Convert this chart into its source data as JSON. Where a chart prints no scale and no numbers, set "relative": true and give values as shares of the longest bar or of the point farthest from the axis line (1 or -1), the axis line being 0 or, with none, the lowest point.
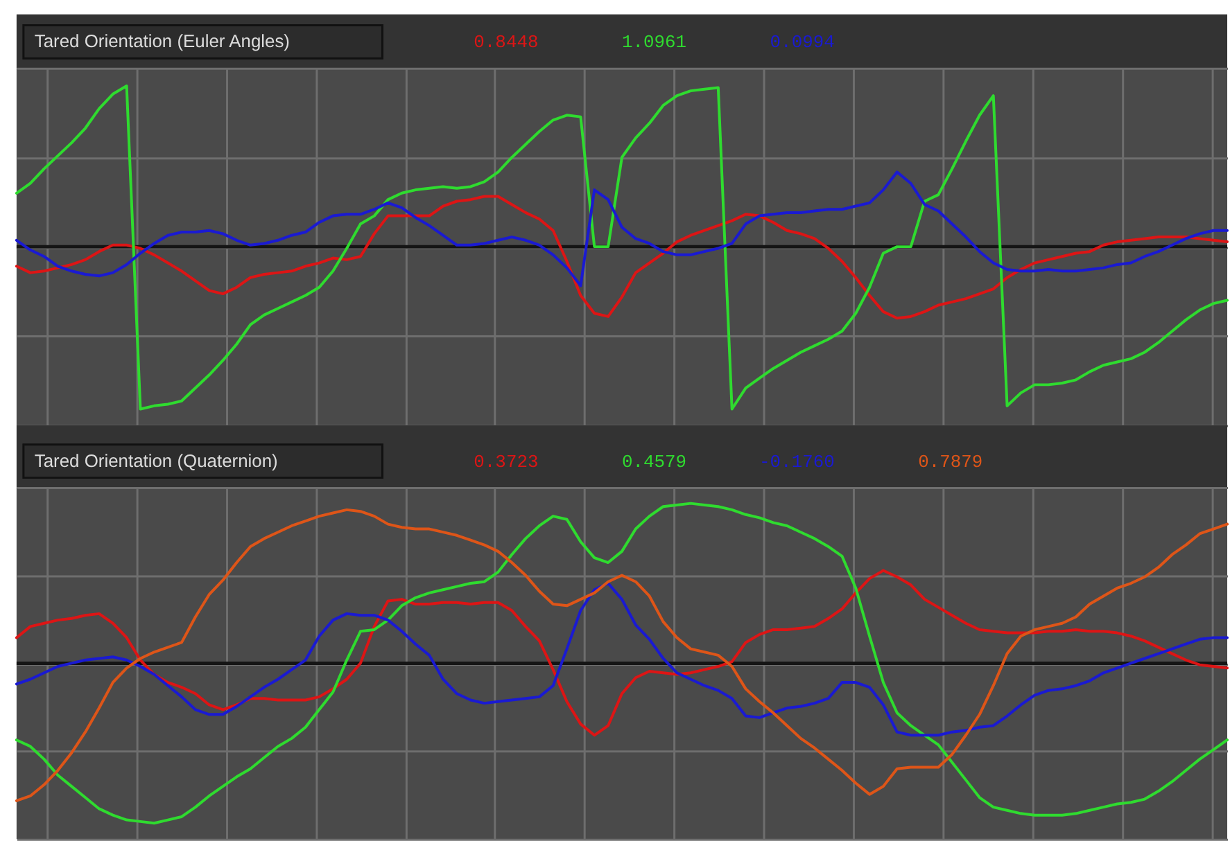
{
  "chart_data": [
    {
      "type": "line",
      "title": "Tared Orientation (Euler Angles)",
      "relative": true,
      "grid": true,
      "categories": [
        null,
        null,
        null,
        null,
        null,
        null,
        null,
        null,
        null,
        null,
        null,
        null,
        null,
        null,
        null,
        null,
        null,
        null,
        null,
        null,
        null,
        null,
        null,
        null,
        null,
        null,
        null,
        null,
        null,
        null,
        null,
        null,
        null,
        null,
        null,
        null,
        null,
        null,
        null,
        null,
        null,
        null,
        null,
        null,
        null,
        null,
        null,
        null,
        null,
        null,
        null,
        null,
        null,
        null,
        null,
        null,
        null,
        null,
        null,
        null,
        null,
        null,
        null,
        null,
        null,
        null,
        null,
        null,
        null,
        null,
        null,
        null,
        null,
        null,
        null,
        null,
        null,
        null,
        null,
        null,
        null,
        null,
        null,
        null,
        null,
        null,
        null,
        null,
        null
      ],
      "series": [
        {
          "name": "0.8448",
          "color": "#dd1515",
          "values": [
            -0.12,
            -0.16,
            -0.15,
            -0.13,
            -0.11,
            -0.08,
            -0.03,
            0.01,
            0.01,
            -0.01,
            -0.05,
            -0.1,
            -0.15,
            -0.21,
            -0.27,
            -0.29,
            -0.25,
            -0.19,
            -0.17,
            -0.16,
            -0.15,
            -0.12,
            -0.1,
            -0.07,
            -0.08,
            -0.06,
            0.08,
            0.19,
            0.19,
            0.19,
            0.19,
            0.25,
            0.28,
            0.29,
            0.31,
            0.31,
            0.26,
            0.21,
            0.17,
            0.1,
            -0.09,
            -0.3,
            -0.41,
            -0.43,
            -0.31,
            -0.16,
            -0.1,
            -0.04,
            0.03,
            0.07,
            0.1,
            0.13,
            0.16,
            0.2,
            0.19,
            0.15,
            0.1,
            0.08,
            0.05,
            -0.01,
            -0.09,
            -0.19,
            -0.3,
            -0.4,
            -0.44,
            -0.43,
            -0.4,
            -0.36,
            -0.34,
            -0.32,
            -0.29,
            -0.26,
            -0.19,
            -0.14,
            -0.1,
            -0.08,
            -0.06,
            -0.04,
            -0.03,
            0.01,
            0.03,
            0.04,
            0.05,
            0.06,
            0.06,
            0.06,
            0.05,
            0.04,
            0.03
          ]
        },
        {
          "name": "1.0961",
          "color": "#2fdb2f",
          "values": [
            0.33,
            0.39,
            0.48,
            0.56,
            0.64,
            0.73,
            0.85,
            0.94,
            0.99,
            -1.0,
            -0.98,
            -0.97,
            -0.95,
            -0.87,
            -0.79,
            -0.7,
            -0.6,
            -0.48,
            -0.42,
            -0.38,
            -0.34,
            -0.3,
            -0.25,
            -0.15,
            -0.01,
            0.14,
            0.19,
            0.29,
            0.33,
            0.35,
            0.36,
            0.37,
            0.36,
            0.37,
            0.4,
            0.46,
            0.55,
            0.63,
            0.71,
            0.78,
            0.81,
            0.8,
            0.0,
            0.0,
            0.55,
            0.67,
            0.76,
            0.87,
            0.93,
            0.96,
            0.97,
            0.98,
            -1.0,
            -0.87,
            -0.81,
            -0.75,
            -0.7,
            -0.65,
            -0.61,
            -0.57,
            -0.52,
            -0.41,
            -0.25,
            -0.04,
            0.0,
            0.0,
            0.28,
            0.32,
            0.48,
            0.65,
            0.81,
            0.93,
            -0.98,
            -0.9,
            -0.85,
            -0.85,
            -0.84,
            -0.82,
            -0.77,
            -0.73,
            -0.71,
            -0.69,
            -0.65,
            -0.59,
            -0.52,
            -0.45,
            -0.39,
            -0.35,
            -0.33
          ]
        },
        {
          "name": "0.0994",
          "color": "#1a1ad2",
          "values": [
            0.04,
            -0.02,
            -0.06,
            -0.12,
            -0.15,
            -0.17,
            -0.18,
            -0.16,
            -0.11,
            -0.04,
            0.02,
            0.07,
            0.09,
            0.09,
            0.1,
            0.08,
            0.04,
            0.01,
            0.02,
            0.04,
            0.07,
            0.09,
            0.15,
            0.19,
            0.2,
            0.2,
            0.23,
            0.27,
            0.24,
            0.18,
            0.13,
            0.07,
            0.01,
            0.01,
            0.02,
            0.04,
            0.06,
            0.04,
            0.01,
            -0.05,
            -0.13,
            -0.24,
            0.35,
            0.29,
            0.12,
            0.05,
            0.02,
            -0.03,
            -0.05,
            -0.05,
            -0.03,
            -0.01,
            0.02,
            0.14,
            0.19,
            0.2,
            0.21,
            0.21,
            0.22,
            0.23,
            0.23,
            0.25,
            0.27,
            0.35,
            0.46,
            0.39,
            0.26,
            0.22,
            0.14,
            0.06,
            -0.03,
            -0.1,
            -0.14,
            -0.15,
            -0.15,
            -0.14,
            -0.15,
            -0.15,
            -0.14,
            -0.13,
            -0.11,
            -0.1,
            -0.06,
            -0.03,
            0.01,
            0.05,
            0.08,
            0.1,
            0.1
          ]
        }
      ]
    },
    {
      "type": "line",
      "title": "Tared Orientation (Quaternion)",
      "relative": true,
      "grid": true,
      "categories": [
        null,
        null,
        null,
        null,
        null,
        null,
        null,
        null,
        null,
        null,
        null,
        null,
        null,
        null,
        null,
        null,
        null,
        null,
        null,
        null,
        null,
        null,
        null,
        null,
        null,
        null,
        null,
        null,
        null,
        null,
        null,
        null,
        null,
        null,
        null,
        null,
        null,
        null,
        null,
        null,
        null,
        null,
        null,
        null,
        null,
        null,
        null,
        null,
        null,
        null,
        null,
        null,
        null,
        null,
        null,
        null,
        null,
        null,
        null,
        null,
        null,
        null,
        null,
        null,
        null,
        null,
        null,
        null,
        null,
        null,
        null,
        null,
        null,
        null,
        null,
        null,
        null,
        null,
        null,
        null,
        null,
        null,
        null,
        null,
        null,
        null,
        null,
        null,
        null
      ],
      "series": [
        {
          "name": "0.3723",
          "color": "#dd1515",
          "values": [
            0.16,
            0.23,
            0.25,
            0.27,
            0.28,
            0.3,
            0.31,
            0.25,
            0.16,
            0.02,
            -0.07,
            -0.12,
            -0.15,
            -0.19,
            -0.26,
            -0.29,
            -0.26,
            -0.22,
            -0.22,
            -0.23,
            -0.23,
            -0.23,
            -0.21,
            -0.16,
            -0.1,
            0.0,
            0.23,
            0.39,
            0.4,
            0.37,
            0.37,
            0.38,
            0.38,
            0.37,
            0.38,
            0.38,
            0.33,
            0.23,
            0.14,
            -0.04,
            -0.24,
            -0.38,
            -0.45,
            -0.39,
            -0.19,
            -0.09,
            -0.05,
            -0.06,
            -0.07,
            -0.06,
            -0.04,
            -0.02,
            0.01,
            0.13,
            0.18,
            0.21,
            0.21,
            0.22,
            0.23,
            0.28,
            0.34,
            0.44,
            0.53,
            0.58,
            0.54,
            0.49,
            0.4,
            0.35,
            0.3,
            0.25,
            0.21,
            0.2,
            0.19,
            0.19,
            0.19,
            0.2,
            0.2,
            0.21,
            0.2,
            0.2,
            0.19,
            0.17,
            0.14,
            0.1,
            0.06,
            0.02,
            -0.01,
            -0.02,
            -0.03
          ]
        },
        {
          "name": "0.4579",
          "color": "#2fdb2f",
          "values": [
            -0.48,
            -0.52,
            -0.6,
            -0.7,
            -0.77,
            -0.84,
            -0.91,
            -0.95,
            -0.98,
            -0.99,
            -1.0,
            -0.98,
            -0.96,
            -0.9,
            -0.83,
            -0.77,
            -0.71,
            -0.66,
            -0.59,
            -0.52,
            -0.47,
            -0.4,
            -0.29,
            -0.18,
            0.02,
            0.2,
            0.21,
            0.27,
            0.36,
            0.41,
            0.44,
            0.46,
            0.48,
            0.5,
            0.51,
            0.57,
            0.68,
            0.78,
            0.86,
            0.92,
            0.9,
            0.76,
            0.66,
            0.63,
            0.7,
            0.84,
            0.92,
            0.98,
            0.99,
            1.0,
            0.99,
            0.98,
            0.96,
            0.93,
            0.91,
            0.88,
            0.86,
            0.82,
            0.78,
            0.73,
            0.67,
            0.47,
            0.17,
            -0.12,
            -0.31,
            -0.39,
            -0.45,
            -0.51,
            -0.62,
            -0.73,
            -0.84,
            -0.9,
            -0.92,
            -0.94,
            -0.95,
            -0.95,
            -0.95,
            -0.94,
            -0.92,
            -0.9,
            -0.88,
            -0.87,
            -0.85,
            -0.8,
            -0.74,
            -0.67,
            -0.6,
            -0.54,
            -0.48
          ]
        },
        {
          "name": "-0.1760",
          "color": "#1a1ad2",
          "values": [
            -0.13,
            -0.1,
            -0.06,
            -0.02,
            0.0,
            0.02,
            0.03,
            0.04,
            0.02,
            -0.02,
            -0.07,
            -0.14,
            -0.21,
            -0.29,
            -0.32,
            -0.32,
            -0.27,
            -0.21,
            -0.15,
            -0.1,
            -0.04,
            0.02,
            0.17,
            0.27,
            0.31,
            0.3,
            0.3,
            0.27,
            0.2,
            0.12,
            0.05,
            -0.1,
            -0.19,
            -0.23,
            -0.25,
            -0.24,
            -0.23,
            -0.22,
            -0.21,
            -0.14,
            0.09,
            0.33,
            0.46,
            0.5,
            0.4,
            0.24,
            0.15,
            0.03,
            -0.06,
            -0.1,
            -0.14,
            -0.17,
            -0.22,
            -0.33,
            -0.34,
            -0.31,
            -0.28,
            -0.27,
            -0.25,
            -0.22,
            -0.12,
            -0.12,
            -0.15,
            -0.26,
            -0.43,
            -0.45,
            -0.45,
            -0.45,
            -0.43,
            -0.42,
            -0.4,
            -0.39,
            -0.33,
            -0.26,
            -0.2,
            -0.17,
            -0.16,
            -0.14,
            -0.11,
            -0.06,
            -0.03,
            0.0,
            0.03,
            0.06,
            0.09,
            0.12,
            0.15,
            0.16,
            0.16
          ]
        },
        {
          "name": "0.7879",
          "color": "#de5518",
          "values": [
            -0.86,
            -0.83,
            -0.76,
            -0.67,
            -0.56,
            -0.43,
            -0.28,
            -0.12,
            -0.03,
            0.03,
            0.07,
            0.1,
            0.13,
            0.29,
            0.43,
            0.52,
            0.63,
            0.73,
            0.78,
            0.82,
            0.86,
            0.89,
            0.92,
            0.94,
            0.96,
            0.95,
            0.92,
            0.87,
            0.85,
            0.84,
            0.84,
            0.82,
            0.8,
            0.77,
            0.74,
            0.7,
            0.63,
            0.55,
            0.45,
            0.37,
            0.36,
            0.4,
            0.44,
            0.51,
            0.55,
            0.51,
            0.42,
            0.26,
            0.16,
            0.09,
            0.07,
            0.05,
            -0.02,
            -0.16,
            -0.24,
            -0.31,
            -0.39,
            -0.47,
            -0.53,
            -0.6,
            -0.67,
            -0.75,
            -0.82,
            -0.77,
            -0.66,
            -0.65,
            -0.65,
            -0.65,
            -0.57,
            -0.45,
            -0.32,
            -0.14,
            0.06,
            0.17,
            0.21,
            0.23,
            0.25,
            0.29,
            0.37,
            0.42,
            0.47,
            0.5,
            0.54,
            0.6,
            0.68,
            0.74,
            0.81,
            0.84,
            0.87
          ]
        }
      ]
    }
  ]
}
